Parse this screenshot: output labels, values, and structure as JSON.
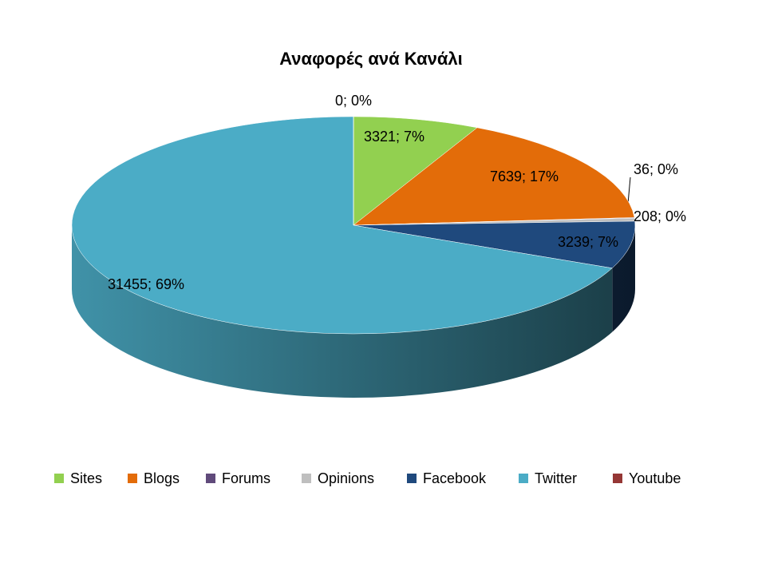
{
  "chart_data": {
    "type": "pie",
    "title": "Αναφορές ανά Κανάλι",
    "categories": [
      "Sites",
      "Blogs",
      "Forums",
      "Opinions",
      "Facebook",
      "Twitter",
      "Youtube"
    ],
    "values": [
      3321,
      7639,
      36,
      208,
      3239,
      31455,
      0
    ],
    "value_labels": [
      "3321; 7%",
      "7639; 17%",
      "36; 0%",
      "208; 0%",
      "3239; 7%",
      "31455; 69%",
      "0; 0%"
    ],
    "colors": [
      "#92d050",
      "#e36c09",
      "#604a7b",
      "#bfbfbf",
      "#1f497d",
      "#4bacc6",
      "#953735"
    ],
    "legend": "bottom"
  }
}
